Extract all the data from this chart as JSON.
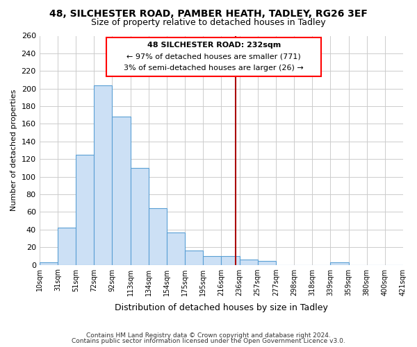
{
  "title": "48, SILCHESTER ROAD, PAMBER HEATH, TADLEY, RG26 3EF",
  "subtitle": "Size of property relative to detached houses in Tadley",
  "xlabel": "Distribution of detached houses by size in Tadley",
  "ylabel": "Number of detached properties",
  "bin_labels": [
    "10sqm",
    "31sqm",
    "51sqm",
    "72sqm",
    "92sqm",
    "113sqm",
    "134sqm",
    "154sqm",
    "175sqm",
    "195sqm",
    "216sqm",
    "236sqm",
    "257sqm",
    "277sqm",
    "298sqm",
    "318sqm",
    "339sqm",
    "359sqm",
    "380sqm",
    "400sqm",
    "421sqm"
  ],
  "bar_heights": [
    3,
    42,
    125,
    204,
    168,
    110,
    64,
    37,
    16,
    10,
    10,
    6,
    4,
    0,
    0,
    0,
    3,
    0,
    0,
    0
  ],
  "bar_color": "#cce0f5",
  "bar_edge_color": "#5a9fd4",
  "vline_color": "#aa0000",
  "ylim": [
    0,
    260
  ],
  "yticks": [
    0,
    20,
    40,
    60,
    80,
    100,
    120,
    140,
    160,
    180,
    200,
    220,
    240,
    260
  ],
  "annotation_title": "48 SILCHESTER ROAD: 232sqm",
  "annotation_line1": "← 97% of detached houses are smaller (771)",
  "annotation_line2": "3% of semi-detached houses are larger (26) →",
  "footer1": "Contains HM Land Registry data © Crown copyright and database right 2024.",
  "footer2": "Contains public sector information licensed under the Open Government Licence v3.0.",
  "background_color": "#ffffff",
  "grid_color": "#cccccc",
  "title_fontsize": 10,
  "subtitle_fontsize": 9,
  "ylabel_fontsize": 8,
  "xlabel_fontsize": 9
}
